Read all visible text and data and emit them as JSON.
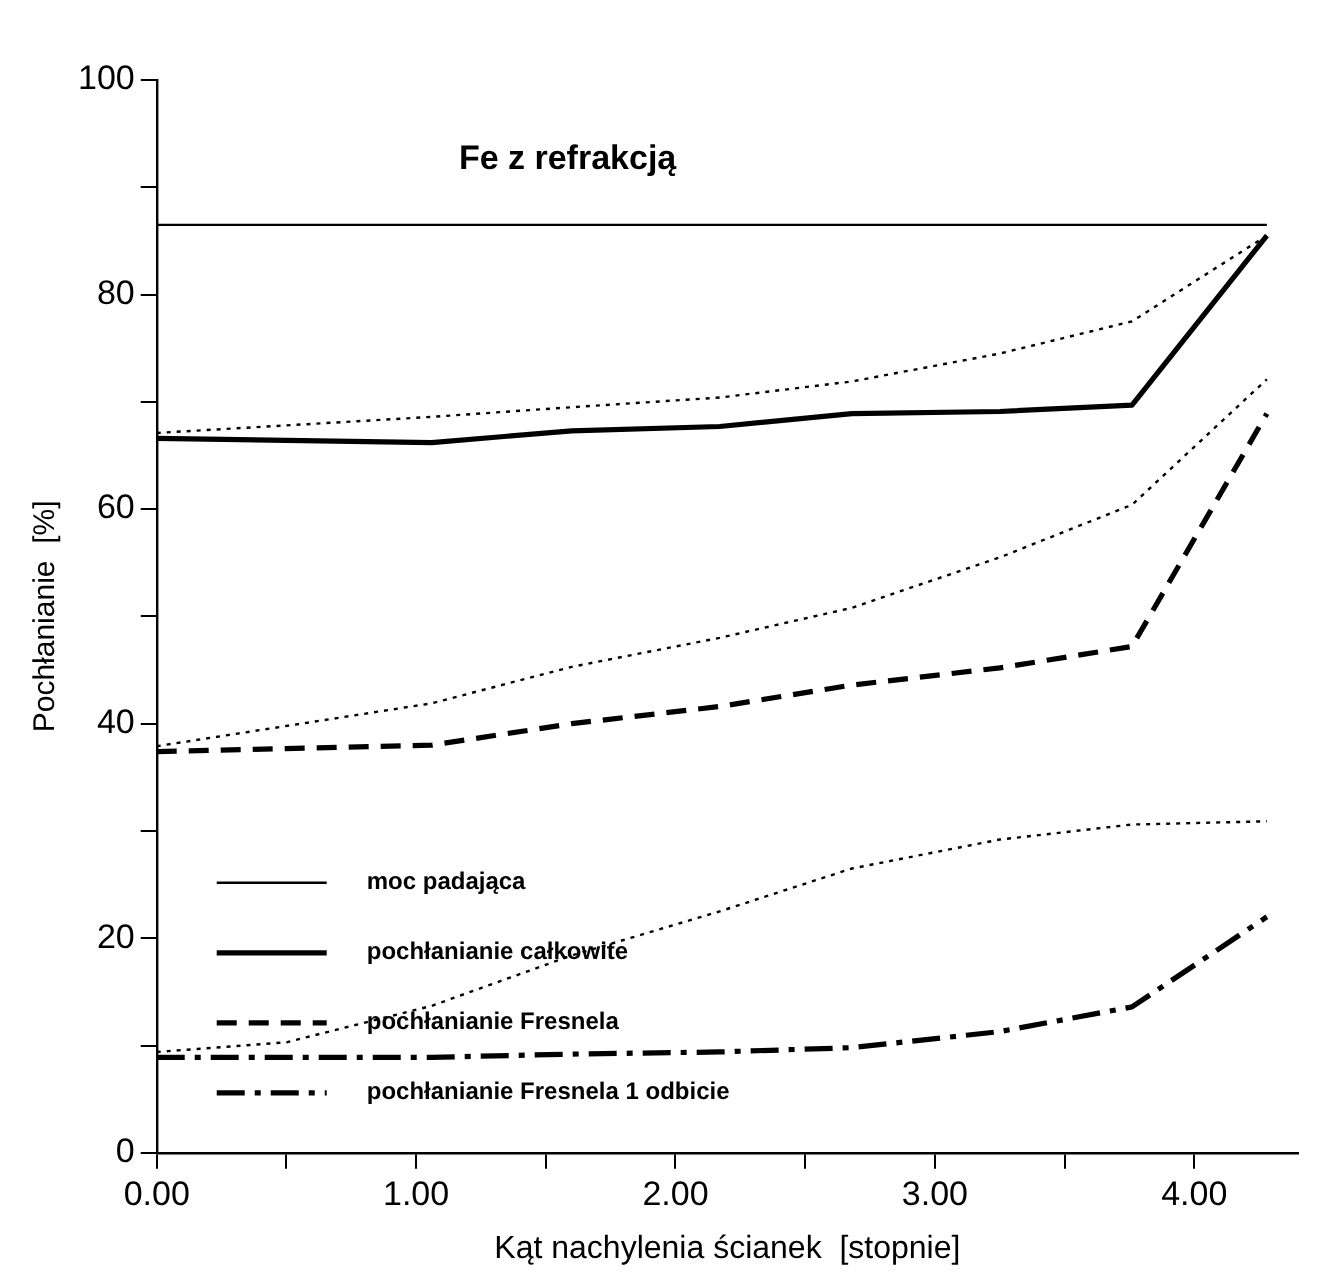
{
  "chart_data": {
    "type": "line",
    "title": "Fe z refrakcją",
    "xlabel": "Kąt nachylenia ścianek  [stopnie]",
    "ylabel": "Pochłanianie  [%]",
    "xlim": [
      0,
      4.4
    ],
    "xticks": [
      {
        "value": 0,
        "label": "0.00"
      },
      {
        "value": 0.5,
        "label": null
      },
      {
        "value": 1,
        "label": "1.00"
      },
      {
        "value": 1.5,
        "label": null
      },
      {
        "value": 2,
        "label": "2.00"
      },
      {
        "value": 2.5,
        "label": null
      },
      {
        "value": 3,
        "label": "3.00"
      },
      {
        "value": 3.5,
        "label": null
      },
      {
        "value": 4,
        "label": "4.00"
      }
    ],
    "ylim": [
      0,
      100
    ],
    "yticks": [
      0,
      {
        "value": 10,
        "label": null
      },
      20,
      {
        "value": 30,
        "label": null
      },
      40,
      {
        "value": 50,
        "label": null
      },
      60,
      {
        "value": 70,
        "label": null
      },
      80,
      {
        "value": 90,
        "label": null
      },
      100
    ],
    "grid": false,
    "legend": "bottom left",
    "marker": "none",
    "series": [
      {
        "name": "moc padająca",
        "color": "#000000",
        "line_style": "solid",
        "x": [
          0,
          4.28
        ],
        "values": [
          86.5,
          86.5
        ]
      },
      {
        "name": "pochłanianie całkowite",
        "color": "#000000",
        "line_style": "solid",
        "x": [
          0,
          1.06,
          1.6,
          2.17,
          2.68,
          3.25,
          3.76,
          4.28
        ],
        "values": [
          66.6,
          66.2,
          67.3,
          67.7,
          68.9,
          69.1,
          69.7,
          85.5
        ]
      },
      {
        "name": "pochłanianie Fresnela",
        "color": "#000000",
        "line_style": "dashed",
        "x": [
          0,
          1.06,
          1.6,
          2.17,
          2.68,
          3.25,
          3.76,
          4.28
        ],
        "values": [
          37.4,
          38.0,
          40.0,
          41.6,
          43.6,
          45.2,
          47.2,
          68.9
        ]
      },
      {
        "name": "pochłanianie Fresnela 1 odbicie",
        "color": "#000000",
        "line_style": "dashdot",
        "x": [
          0,
          1.06,
          1.6,
          2.17,
          2.68,
          3.25,
          3.76,
          4.28
        ],
        "values": [
          8.9,
          8.9,
          9.2,
          9.4,
          9.8,
          11.3,
          13.6,
          22.0
        ]
      },
      {
        "color": "#000000",
        "line_style": "dotted",
        "x": [
          0,
          1.06,
          1.6,
          2.17,
          2.68,
          3.25,
          3.76,
          4.28
        ],
        "values": [
          67.1,
          68.6,
          69.5,
          70.4,
          71.9,
          74.5,
          77.5,
          85.5
        ]
      },
      {
        "color": "#000000",
        "line_style": "dotted",
        "x": [
          0,
          1.06,
          1.6,
          2.17,
          2.68,
          3.25,
          3.76,
          4.28
        ],
        "values": [
          37.9,
          41.9,
          45.3,
          48.0,
          50.8,
          55.5,
          60.4,
          72.1
        ]
      },
      {
        "color": "#000000",
        "line_style": "dotted",
        "x": [
          0,
          0.5,
          1.06,
          1.6,
          2.17,
          2.68,
          3.25,
          3.76,
          4.28
        ],
        "values": [
          9.4,
          10.3,
          13.7,
          18.4,
          22.5,
          26.5,
          29.2,
          30.6,
          30.9
        ]
      }
    ]
  }
}
